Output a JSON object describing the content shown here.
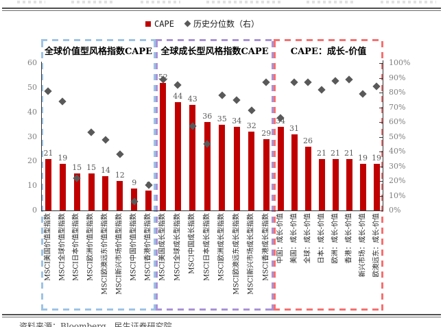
{
  "legend": {
    "cape_label": "CAPE",
    "percentile_label": "历史分位数（右）"
  },
  "footer": {
    "source": "资料来源：Bloomberg，民生证券研究院"
  },
  "colors": {
    "bar": "#C00000",
    "marker": "#595959",
    "value_box": "#9DC3E6",
    "growth_box": "#A992D6",
    "diff_box": "#F86F6F"
  },
  "chart_data": {
    "type": "bar",
    "title": "",
    "legend_position": "top",
    "grid": false,
    "left_axis": {
      "label": "CAPE",
      "min": 0,
      "max": 60,
      "ticks": [
        "0",
        "10",
        "20",
        "30",
        "40",
        "50",
        "60"
      ]
    },
    "right_axis": {
      "label": "历史分位数",
      "min": 0,
      "max": 100,
      "ticks": [
        "0%",
        "10%",
        "20%",
        "30%",
        "40%",
        "50%",
        "60%",
        "70%",
        "80%",
        "90%",
        "100%"
      ]
    },
    "series_meta": [
      {
        "name": "CAPE",
        "type": "bar",
        "axis": "left",
        "color": "#C00000"
      },
      {
        "name": "历史分位数（右）",
        "type": "scatter",
        "marker": "diamond",
        "axis": "right",
        "color": "#595959"
      }
    ],
    "groups": [
      {
        "title": "全球价值型风格指数CAPE",
        "box_color": "#9DC3E6",
        "categories": [
          "MSCI美国价值型指数",
          "MSCI全球价值型指数",
          "MSCI日本价值型指数",
          "MSCI欧洲价值型指数",
          "MSCI欧澳远东价值型指数",
          "MSCI新兴市场价值型指数",
          "MSCI中国价值型指数",
          "MSCI香港价值型指数"
        ],
        "cape": [
          21,
          19,
          15,
          15,
          14,
          12,
          9,
          8
        ],
        "percentile_pct": [
          81,
          74,
          22,
          53,
          48,
          38,
          6,
          17
        ]
      },
      {
        "title": "全球成长型风格指数CAPE",
        "box_color": "#A992D6",
        "categories": [
          "MSCI美国成长型指数",
          "MSCI全球成长型指数",
          "MSCI中国成长指数",
          "MSCI日本成长型指数",
          "MSCI欧洲成长型指数",
          "MSCI欧澳远东成长型指数",
          "MSCI新兴市场成长型指数",
          "MSCI香港成长型指数"
        ],
        "cape": [
          52,
          44,
          43,
          36,
          35,
          34,
          32,
          29
        ],
        "percentile_pct": [
          89,
          85,
          57,
          45,
          78,
          75,
          68,
          87
        ]
      },
      {
        "title": "CAPE：成长-价值",
        "box_color": "#F86F6F",
        "categories": [
          "中国：成长-价值",
          "美国：成长-价值",
          "全球：成长-价值",
          "日本：成长-价值",
          "欧洲：成长-价值",
          "香港：成长-价值",
          "新兴市场：成长-价值",
          "欧澳远东：成长-价值"
        ],
        "cape": [
          34,
          31,
          26,
          21,
          21,
          21,
          19,
          19
        ],
        "percentile_pct": [
          63,
          87,
          87,
          82,
          88,
          89,
          79,
          84
        ]
      }
    ]
  }
}
